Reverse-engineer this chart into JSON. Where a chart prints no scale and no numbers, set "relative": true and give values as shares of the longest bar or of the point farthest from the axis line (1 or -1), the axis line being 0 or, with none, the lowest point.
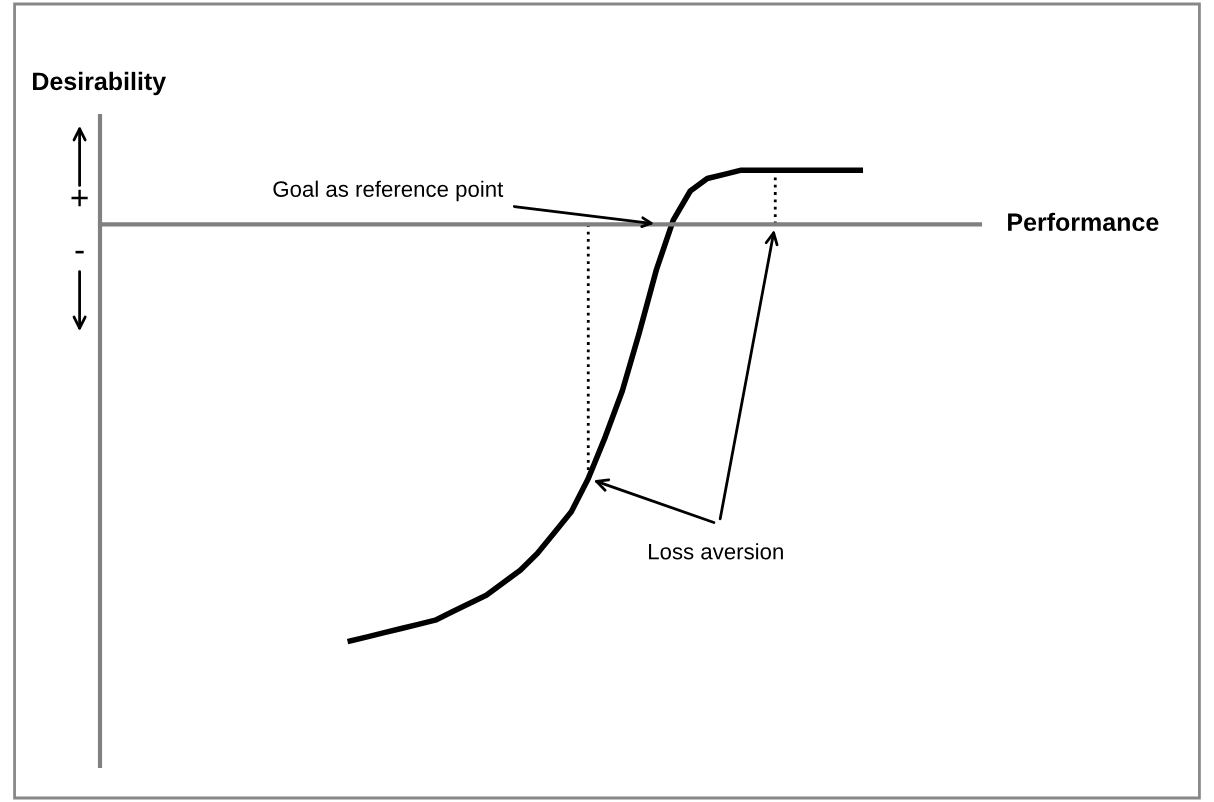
{
  "chart_data": {
    "type": "line",
    "relative": true,
    "categories": [
      null,
      null,
      null,
      null,
      null,
      null,
      null,
      null,
      null,
      null,
      null,
      null,
      null,
      null,
      null,
      null,
      null,
      null,
      null,
      null,
      null,
      null,
      null,
      null,
      null,
      null,
      null,
      null,
      null,
      null,
      null
    ],
    "series": [
      {
        "color": "#000000",
        "values": [
          -1.0,
          -0.99,
          -0.98,
          -0.97,
          -0.96,
          -0.95,
          -0.93,
          -0.91,
          -0.89,
          -0.86,
          -0.83,
          -0.79,
          -0.74,
          -0.69,
          -0.61,
          -0.51,
          -0.4,
          -0.26,
          -0.11,
          0.01,
          0.08,
          0.11,
          0.12,
          0.13,
          0.13,
          0.13,
          0.13,
          0.13,
          0.13,
          0.13,
          0.13
        ]
      }
    ],
    "annotations": [
      "Goal as reference point",
      "Loss aversion",
      "+",
      "-",
      "Desirability",
      "Performance"
    ],
    "marker": "none",
    "line_style": "solid"
  }
}
